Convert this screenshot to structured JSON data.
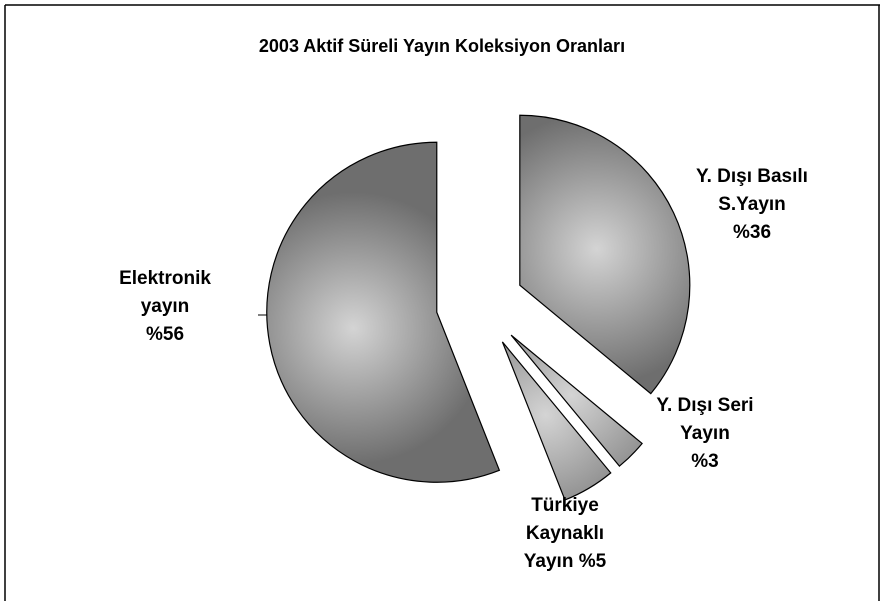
{
  "chart_data": {
    "type": "pie",
    "title": "2003 Aktif Süreli Yayın Koleksiyon Oranları",
    "categories": [
      "Y. Dışı Basılı S.Yayın",
      "Y. Dışı Seri Yayın",
      "Türkiye Kaynaklı Yayın",
      "Elektronik yayın"
    ],
    "values": [
      36,
      3,
      5,
      56
    ],
    "value_labels": [
      "%36",
      "%3",
      "%5",
      "%56"
    ],
    "colors": [
      "#6e6e6e",
      "#6e6e6e",
      "#6e6e6e",
      "#6e6e6e"
    ],
    "exploded": true
  }
}
